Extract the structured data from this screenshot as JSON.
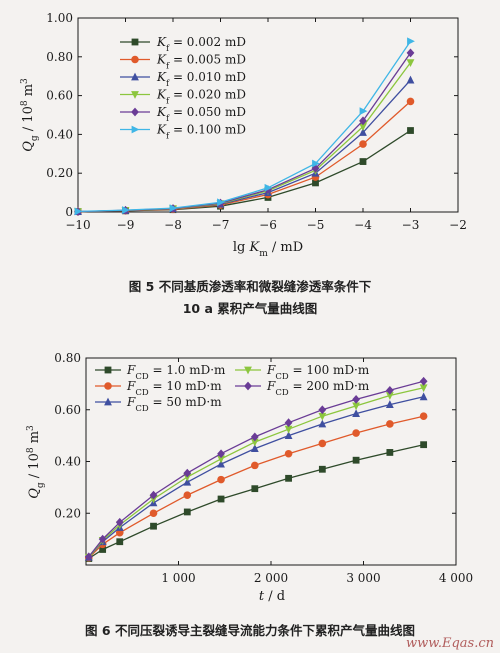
{
  "chart_data": [
    {
      "type": "line",
      "ylabel": "Q_g / 10^8 m^3",
      "xlabel": "lg K_m / mD",
      "xlim": [
        -10,
        -2
      ],
      "ylim": [
        0,
        1.0
      ],
      "xticks": [
        "−10",
        "−9",
        "−8",
        "−7",
        "−6",
        "−5",
        "−4",
        "−3",
        "−2"
      ],
      "yticks": [
        "0",
        "0.20",
        "0.40",
        "0.60",
        "0.80",
        "1.00"
      ],
      "legend_position": "top-left",
      "x": [
        -10,
        -9,
        -8,
        -7,
        -6,
        -5,
        -4,
        -3
      ],
      "series": [
        {
          "name": "K_f = 0.002 mD",
          "color": "#2e4a2a",
          "marker": "square",
          "values": [
            0.002,
            0.006,
            0.012,
            0.03,
            0.075,
            0.15,
            0.26,
            0.42
          ]
        },
        {
          "name": "K_f = 0.005 mD",
          "color": "#e05a2b",
          "marker": "circle",
          "values": [
            0.002,
            0.007,
            0.014,
            0.036,
            0.09,
            0.18,
            0.35,
            0.57
          ]
        },
        {
          "name": "K_f = 0.010 mD",
          "color": "#3f4fa0",
          "marker": "triangle",
          "values": [
            0.002,
            0.008,
            0.016,
            0.04,
            0.1,
            0.2,
            0.41,
            0.68
          ]
        },
        {
          "name": "K_f = 0.020 mD",
          "color": "#8cc63e",
          "marker": "tri-down",
          "values": [
            0.002,
            0.008,
            0.017,
            0.043,
            0.11,
            0.215,
            0.44,
            0.77
          ]
        },
        {
          "name": "K_f = 0.050 mD",
          "color": "#6a3c96",
          "marker": "diamond",
          "values": [
            0.002,
            0.009,
            0.018,
            0.046,
            0.115,
            0.225,
            0.47,
            0.82
          ]
        },
        {
          "name": "K_f = 0.100 mD",
          "color": "#3fb6e6",
          "marker": "tri-right",
          "values": [
            0.003,
            0.01,
            0.02,
            0.05,
            0.125,
            0.25,
            0.52,
            0.88
          ]
        }
      ]
    },
    {
      "type": "line",
      "ylabel": "Q_g / 10^8 m^3",
      "xlabel": "t / d",
      "xlim": [
        0,
        4000
      ],
      "ylim": [
        0,
        0.8
      ],
      "xticks": [
        "1 000",
        "2 000",
        "3 000",
        "4 000"
      ],
      "yticks": [
        "0.20",
        "0.40",
        "0.60",
        "0.80"
      ],
      "legend_position": "top",
      "x": [
        30,
        180,
        365,
        730,
        1095,
        1460,
        1825,
        2190,
        2555,
        2920,
        3285,
        3650
      ],
      "series": [
        {
          "name": "F_CD = 1.0 mD·m",
          "color": "#2e4a2a",
          "marker": "square",
          "values": [
            0.025,
            0.06,
            0.09,
            0.15,
            0.205,
            0.255,
            0.295,
            0.335,
            0.37,
            0.405,
            0.435,
            0.465
          ]
        },
        {
          "name": "F_CD = 10 mD·m",
          "color": "#e05a2b",
          "marker": "circle",
          "values": [
            0.028,
            0.08,
            0.125,
            0.2,
            0.27,
            0.33,
            0.385,
            0.43,
            0.47,
            0.51,
            0.545,
            0.575
          ]
        },
        {
          "name": "F_CD = 50 mD·m",
          "color": "#3f4fa0",
          "marker": "triangle",
          "values": [
            0.03,
            0.09,
            0.145,
            0.24,
            0.32,
            0.39,
            0.45,
            0.5,
            0.545,
            0.585,
            0.62,
            0.65
          ]
        },
        {
          "name": "F_CD = 100 mD·m",
          "color": "#8cc63e",
          "marker": "tri-down",
          "values": [
            0.03,
            0.095,
            0.155,
            0.255,
            0.34,
            0.41,
            0.475,
            0.525,
            0.575,
            0.615,
            0.655,
            0.685
          ]
        },
        {
          "name": "F_CD = 200 mD·m",
          "color": "#6a3c96",
          "marker": "diamond",
          "values": [
            0.032,
            0.1,
            0.165,
            0.27,
            0.355,
            0.43,
            0.495,
            0.55,
            0.6,
            0.64,
            0.675,
            0.71
          ]
        }
      ]
    }
  ],
  "captions": {
    "fig5_line1": "图 5   不同基质渗透率和微裂缝渗透率条件下",
    "fig5_line2": "10 a 累积产气量曲线图",
    "fig6": "图 6   不同压裂诱导主裂缝导流能力条件下累积产气量曲线图"
  },
  "watermark": "www.Eqas.cn"
}
